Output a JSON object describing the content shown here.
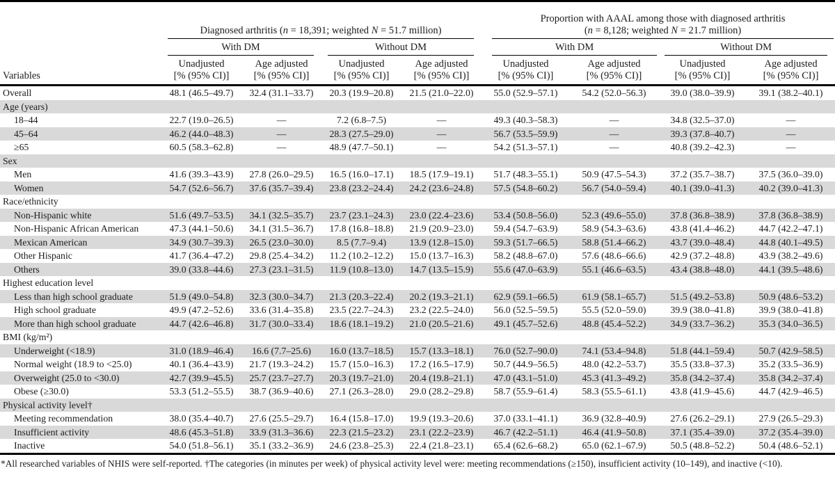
{
  "table": {
    "variables_label": "Variables",
    "group1_title_parts": [
      {
        "t": "Diagnosed arthritis ("
      },
      {
        "t": "n",
        "i": true
      },
      {
        "t": " = 18,391; weighted "
      },
      {
        "t": "N",
        "i": true
      },
      {
        "t": " = 51.7 million)"
      }
    ],
    "group2_title_line1": "Proportion with AAAL among those with diagnosed arthritis",
    "group2_title_parts": [
      {
        "t": "("
      },
      {
        "t": "n",
        "i": true
      },
      {
        "t": " = 8,128; weighted "
      },
      {
        "t": "N",
        "i": true
      },
      {
        "t": " = 21.7 million)"
      }
    ],
    "dm_headers": [
      "With DM",
      "Without DM",
      "With DM",
      "Without DM"
    ],
    "stat_col_headers": [
      {
        "line1": "Unadjusted",
        "line2": "[% (95% CI)]"
      },
      {
        "line1": "Age adjusted",
        "line2": "[% (95% CI)]"
      },
      {
        "line1": "Unadjusted",
        "line2": "[% (95% CI)]"
      },
      {
        "line1": "Age adjusted",
        "line2": "[% (95% CI)]"
      },
      {
        "line1": "Unadjusted",
        "line2": "[% (95% CI)]"
      },
      {
        "line1": "Age adjusted",
        "line2": "[% (95% CI)]"
      },
      {
        "line1": "Unadjusted",
        "line2": "[% (95% CI)]"
      },
      {
        "line1": "Age adjusted",
        "line2": "[% (95% CI)]"
      }
    ],
    "rows": [
      {
        "label": "Overall",
        "section": false,
        "indent": false,
        "values": [
          "48.1 (46.5–49.7)",
          "32.4 (31.1–33.7)",
          "20.3 (19.9–20.8)",
          "21.5 (21.0–22.0)",
          "55.0 (52.9–57.1)",
          "54.2 (52.0–56.3)",
          "39.0 (38.0–39.9)",
          "39.1 (38.2–40.1)"
        ]
      },
      {
        "label": "Age (years)",
        "section": true,
        "indent": false
      },
      {
        "label": "18–44",
        "section": false,
        "indent": true,
        "values": [
          "22.7 (19.0–26.5)",
          "—",
          "7.2 (6.8–7.5)",
          "—",
          "49.3 (40.3–58.3)",
          "—",
          "34.8 (32.5–37.0)",
          "—"
        ]
      },
      {
        "label": "45–64",
        "section": false,
        "indent": true,
        "values": [
          "46.2 (44.0–48.3)",
          "—",
          "28.3 (27.5–29.0)",
          "—",
          "56.7 (53.5–59.9)",
          "—",
          "39.3 (37.8–40.7)",
          "—"
        ]
      },
      {
        "label": "≥65",
        "section": false,
        "indent": true,
        "values": [
          "60.5 (58.3–62.8)",
          "—",
          "48.9 (47.7–50.1)",
          "—",
          "54.2 (51.3–57.1)",
          "—",
          "40.8 (39.2–42.3)",
          "—"
        ]
      },
      {
        "label": "Sex",
        "section": true,
        "indent": false
      },
      {
        "label": "Men",
        "section": false,
        "indent": true,
        "values": [
          "41.6 (39.3–43.9)",
          "27.8 (26.0–29.5)",
          "16.5 (16.0–17.1)",
          "18.5 (17.9–19.1)",
          "51.7 (48.3–55.1)",
          "50.9 (47.5–54.3)",
          "37.2 (35.7–38.7)",
          "37.5 (36.0–39.0)"
        ]
      },
      {
        "label": "Women",
        "section": false,
        "indent": true,
        "values": [
          "54.7 (52.6–56.7)",
          "37.6 (35.7–39.4)",
          "23.8 (23.2–24.4)",
          "24.2 (23.6–24.8)",
          "57.5 (54.8–60.2)",
          "56.7 (54.0–59.4)",
          "40.1 (39.0–41.3)",
          "40.2 (39.0–41.3)"
        ]
      },
      {
        "label": "Race/ethnicity",
        "section": true,
        "indent": false
      },
      {
        "label": "Non-Hispanic white",
        "section": false,
        "indent": true,
        "values": [
          "51.6 (49.7–53.5)",
          "34.1 (32.5–35.7)",
          "23.7 (23.1–24.3)",
          "23.0 (22.4–23.6)",
          "53.4 (50.8–56.0)",
          "52.3 (49.6–55.0)",
          "37.8 (36.8–38.9)",
          "37.8 (36.8–38.9)"
        ]
      },
      {
        "label": "Non-Hispanic African American",
        "section": false,
        "indent": true,
        "values": [
          "47.3 (44.1–50.6)",
          "34.1 (31.5–36.7)",
          "17.8 (16.8–18.8)",
          "21.9 (20.9–23.0)",
          "59.4 (54.7–63.9)",
          "58.9 (54.3–63.6)",
          "43.8 (41.4–46.2)",
          "44.7 (42.2–47.1)"
        ]
      },
      {
        "label": "Mexican American",
        "section": false,
        "indent": true,
        "values": [
          "34.9 (30.7–39.3)",
          "26.5 (23.0–30.0)",
          "8.5 (7.7–9.4)",
          "13.9 (12.8–15.0)",
          "59.3 (51.7–66.5)",
          "58.8 (51.4–66.2)",
          "43.7 (39.0–48.4)",
          "44.8 (40.1–49.5)"
        ]
      },
      {
        "label": "Other Hispanic",
        "section": false,
        "indent": true,
        "values": [
          "41.7 (36.4–47.2)",
          "29.8 (25.4–34.2)",
          "11.2 (10.2–12.2)",
          "15.0 (13.7–16.3)",
          "58.2 (48.8–67.0)",
          "57.6 (48.6–66.6)",
          "42.9 (37.2–48.8)",
          "43.9 (38.2–49.6)"
        ]
      },
      {
        "label": "Others",
        "section": false,
        "indent": true,
        "values": [
          "39.0 (33.8–44.6)",
          "27.3 (23.1–31.5)",
          "11.9 (10.8–13.0)",
          "14.7 (13.5–15.9)",
          "55.6 (47.0–63.9)",
          "55.1 (46.6–63.5)",
          "43.4 (38.8–48.0)",
          "44.1 (39.5–48.6)"
        ]
      },
      {
        "label": "Highest education level",
        "section": true,
        "indent": false
      },
      {
        "label": "Less than high school graduate",
        "section": false,
        "indent": true,
        "values": [
          "51.9 (49.0–54.8)",
          "32.3 (30.0–34.7)",
          "21.3 (20.3–22.4)",
          "20.2 (19.3–21.1)",
          "62.9 (59.1–66.5)",
          "61.9 (58.1–65.7)",
          "51.5 (49.2–53.8)",
          "50.9 (48.6–53.2)"
        ]
      },
      {
        "label": "High school graduate",
        "section": false,
        "indent": true,
        "values": [
          "49.9 (47.2–52.6)",
          "33.6 (31.4–35.8)",
          "23.5 (22.7–24.3)",
          "23.2 (22.5–24.0)",
          "56.0 (52.5–59.5)",
          "55.5 (52.0–59.0)",
          "39.9 (38.0–41.8)",
          "39.9 (38.0–41.8)"
        ]
      },
      {
        "label": "More than high school graduate",
        "section": false,
        "indent": true,
        "values": [
          "44.7 (42.6–46.8)",
          "31.7 (30.0–33.4)",
          "18.6 (18.1–19.2)",
          "21.0 (20.5–21.6)",
          "49.1 (45.7–52.6)",
          "48.8 (45.4–52.2)",
          "34.9 (33.7–36.2)",
          "35.3 (34.0–36.5)"
        ]
      },
      {
        "label": "BMI (kg/m²)",
        "section": true,
        "indent": false
      },
      {
        "label": "Underweight (<18.9)",
        "section": false,
        "indent": true,
        "values": [
          "31.0 (18.9–46.4)",
          "16.6 (7.7–25.6)",
          "16.0 (13.7–18.5)",
          "15.7 (13.3–18.1)",
          "76.0 (52.7–90.0)",
          "74.1 (53.4–94.8)",
          "51.8 (44.1–59.4)",
          "50.7 (42.9–58.5)"
        ]
      },
      {
        "label": "Normal weight (18.9 to <25.0)",
        "section": false,
        "indent": true,
        "values": [
          "40.1 (36.4–43.9)",
          "21.7 (19.3–24.2)",
          "15.7 (15.0–16.3)",
          "17.2 (16.5–17.9)",
          "50.7 (44.9–56.5)",
          "48.0 (42.2–53.7)",
          "35.5 (33.8–37.3)",
          "35.2 (33.5–36.9)"
        ]
      },
      {
        "label": "Overweight (25.0 to <30.0)",
        "section": false,
        "indent": true,
        "values": [
          "42.7 (39.9–45.5)",
          "25.7 (23.7–27.7)",
          "20.3 (19.7–21.0)",
          "20.4 (19.8–21.1)",
          "47.0 (43.1–51.0)",
          "45.3 (41.3–49.2)",
          "35.8 (34.2–37.4)",
          "35.8 (34.2–37.4)"
        ]
      },
      {
        "label": "Obese (≥30.0)",
        "section": false,
        "indent": true,
        "values": [
          "53.3 (51.2–55.5)",
          "38.7 (36.9–40.6)",
          "27.1 (26.3–28.0)",
          "29.0 (28.2–29.8)",
          "58.7 (55.9–61.4)",
          "58.3 (55.5–61.1)",
          "43.8 (41.9–45.6)",
          "44.7 (42.9–46.5)"
        ]
      },
      {
        "label": "Physical activity level†",
        "section": true,
        "indent": false
      },
      {
        "label": "Meeting recommendation",
        "section": false,
        "indent": true,
        "values": [
          "38.0 (35.4–40.7)",
          "27.6 (25.5–29.7)",
          "16.4 (15.8–17.0)",
          "19.9 (19.3–20.6)",
          "37.0 (33.1–41.1)",
          "36.9 (32.8–40.9)",
          "27.6 (26.2–29.1)",
          "27.9 (26.5–29.3)"
        ]
      },
      {
        "label": "Insufficient activity",
        "section": false,
        "indent": true,
        "values": [
          "48.6 (45.3–51.8)",
          "33.9 (31.3–36.6)",
          "22.3 (21.5–23.2)",
          "23.1 (22.2–23.9)",
          "46.7 (42.2–51.1)",
          "46.4 (41.9–50.8)",
          "37.1 (35.4–39.0)",
          "37.2 (35.4–39.0)"
        ]
      },
      {
        "label": "Inactive",
        "section": false,
        "indent": true,
        "values": [
          "54.0 (51.8–56.1)",
          "35.1 (33.2–36.9)",
          "24.6 (23.8–25.3)",
          "22.4 (21.8–23.1)",
          "65.4 (62.6–68.2)",
          "65.0 (62.1–67.9)",
          "50.5 (48.8–52.2)",
          "50.4 (48.6–52.1)"
        ]
      }
    ],
    "footnote": "*All researched variables of NHIS were self-reported. †The categories (in minutes per week) of physical activity level were: meeting recommendations (≥150), insufficient activity (10–149), and inactive (<10).",
    "shaded_row_color": "#d9d9d9"
  }
}
